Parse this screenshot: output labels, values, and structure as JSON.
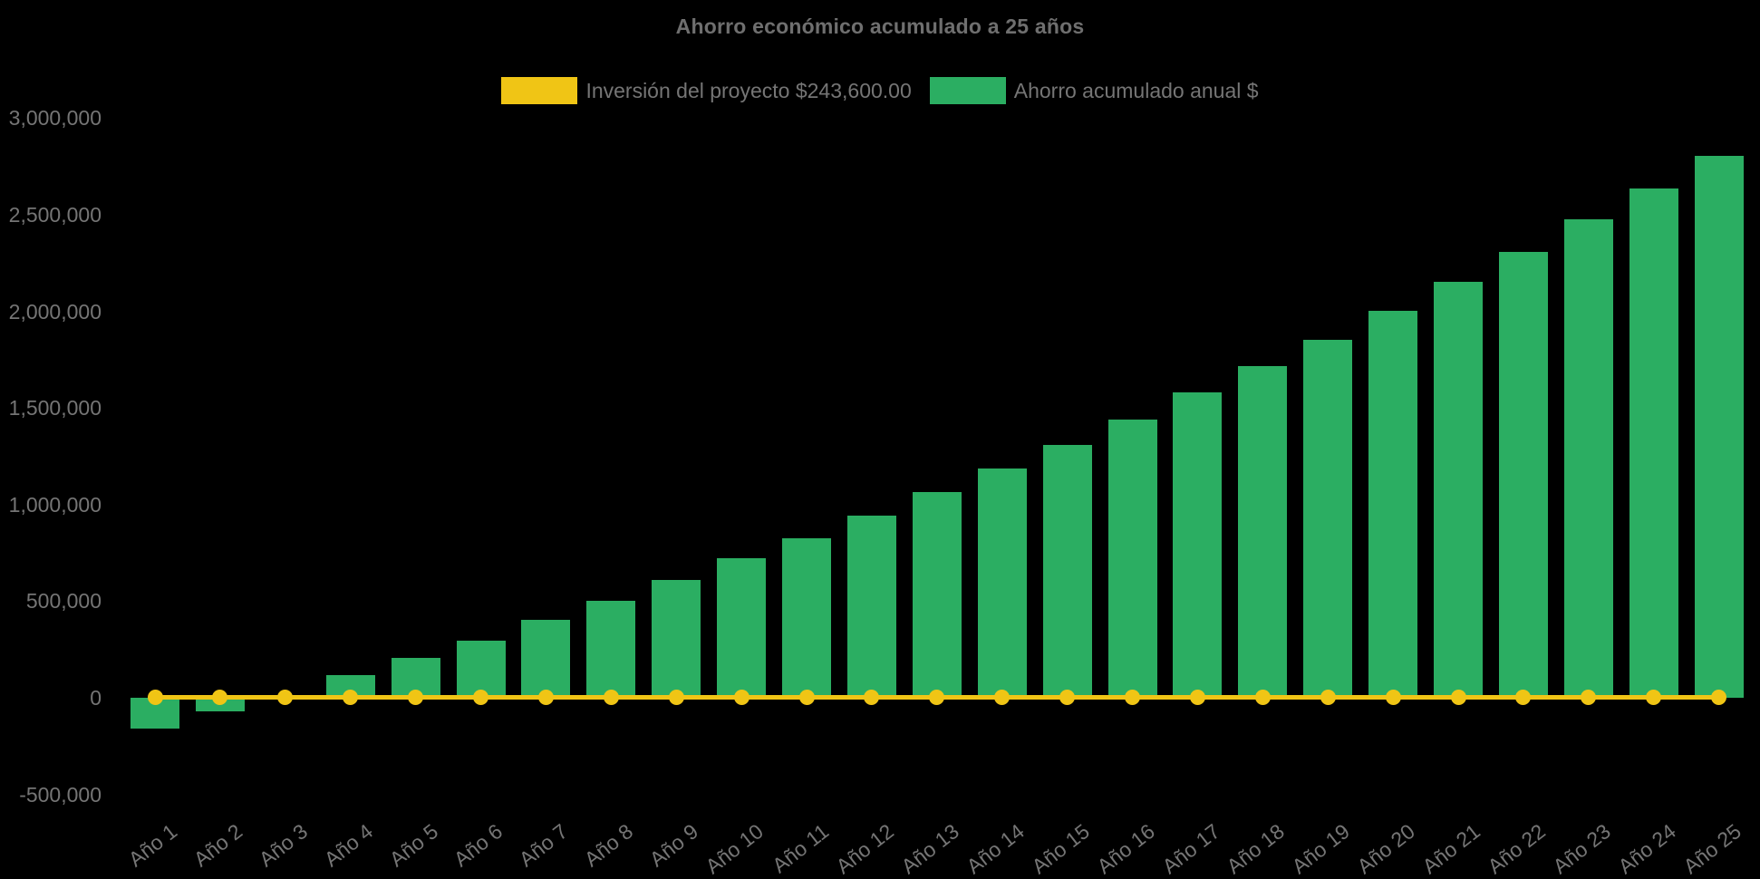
{
  "page": {
    "background": "#000000"
  },
  "chart_data": {
    "type": "bar",
    "title": "Ahorro económico acumulado a 25 años",
    "xlabel": "",
    "ylabel": "",
    "grid": false,
    "legend_position": "top-center",
    "x_tick_rotation": -38,
    "ylim": [
      -700000,
      3200000
    ],
    "yticks": [
      3000000,
      2500000,
      2000000,
      1500000,
      1000000,
      500000,
      0,
      -500000
    ],
    "ytick_labels": [
      "3,000,000",
      "2,500,000",
      "2,000,000",
      "1,500,000",
      "1,000,000",
      "500,000",
      "0",
      "-500,000"
    ],
    "categories": [
      "Año 1",
      "Año 2",
      "Año 3",
      "Año 4",
      "Año 5",
      "Año 6",
      "Año 7",
      "Año 8",
      "Año 9",
      "Año 10",
      "Año 11",
      "Año 12",
      "Año 13",
      "Año 14",
      "Año 15",
      "Año 16",
      "Año 17",
      "Año 18",
      "Año 19",
      "Año 20",
      "Año 21",
      "Año 22",
      "Año 23",
      "Año 24",
      "Año 25"
    ],
    "series": [
      {
        "name": "Inversión del proyecto $243,600.00",
        "type": "line-with-markers",
        "color": "#f0c515",
        "investment_amount_label": "$243,600.00",
        "displayed_constant_value": 0,
        "values": [
          0,
          0,
          0,
          0,
          0,
          0,
          0,
          0,
          0,
          0,
          0,
          0,
          0,
          0,
          0,
          0,
          0,
          0,
          0,
          0,
          0,
          0,
          0,
          0,
          0
        ]
      },
      {
        "name": "Ahorro acumulado anual $",
        "type": "bar",
        "color": "#2bae62",
        "values": [
          -160000,
          -70000,
          15000,
          115000,
          205000,
          295000,
          405000,
          500000,
          610000,
          720000,
          825000,
          945000,
          1065000,
          1185000,
          1310000,
          1440000,
          1580000,
          1715000,
          1855000,
          2005000,
          2155000,
          2310000,
          2475000,
          2635000,
          2805000
        ]
      }
    ],
    "text_color": "#757575",
    "title_color": "#6f6f6f"
  }
}
